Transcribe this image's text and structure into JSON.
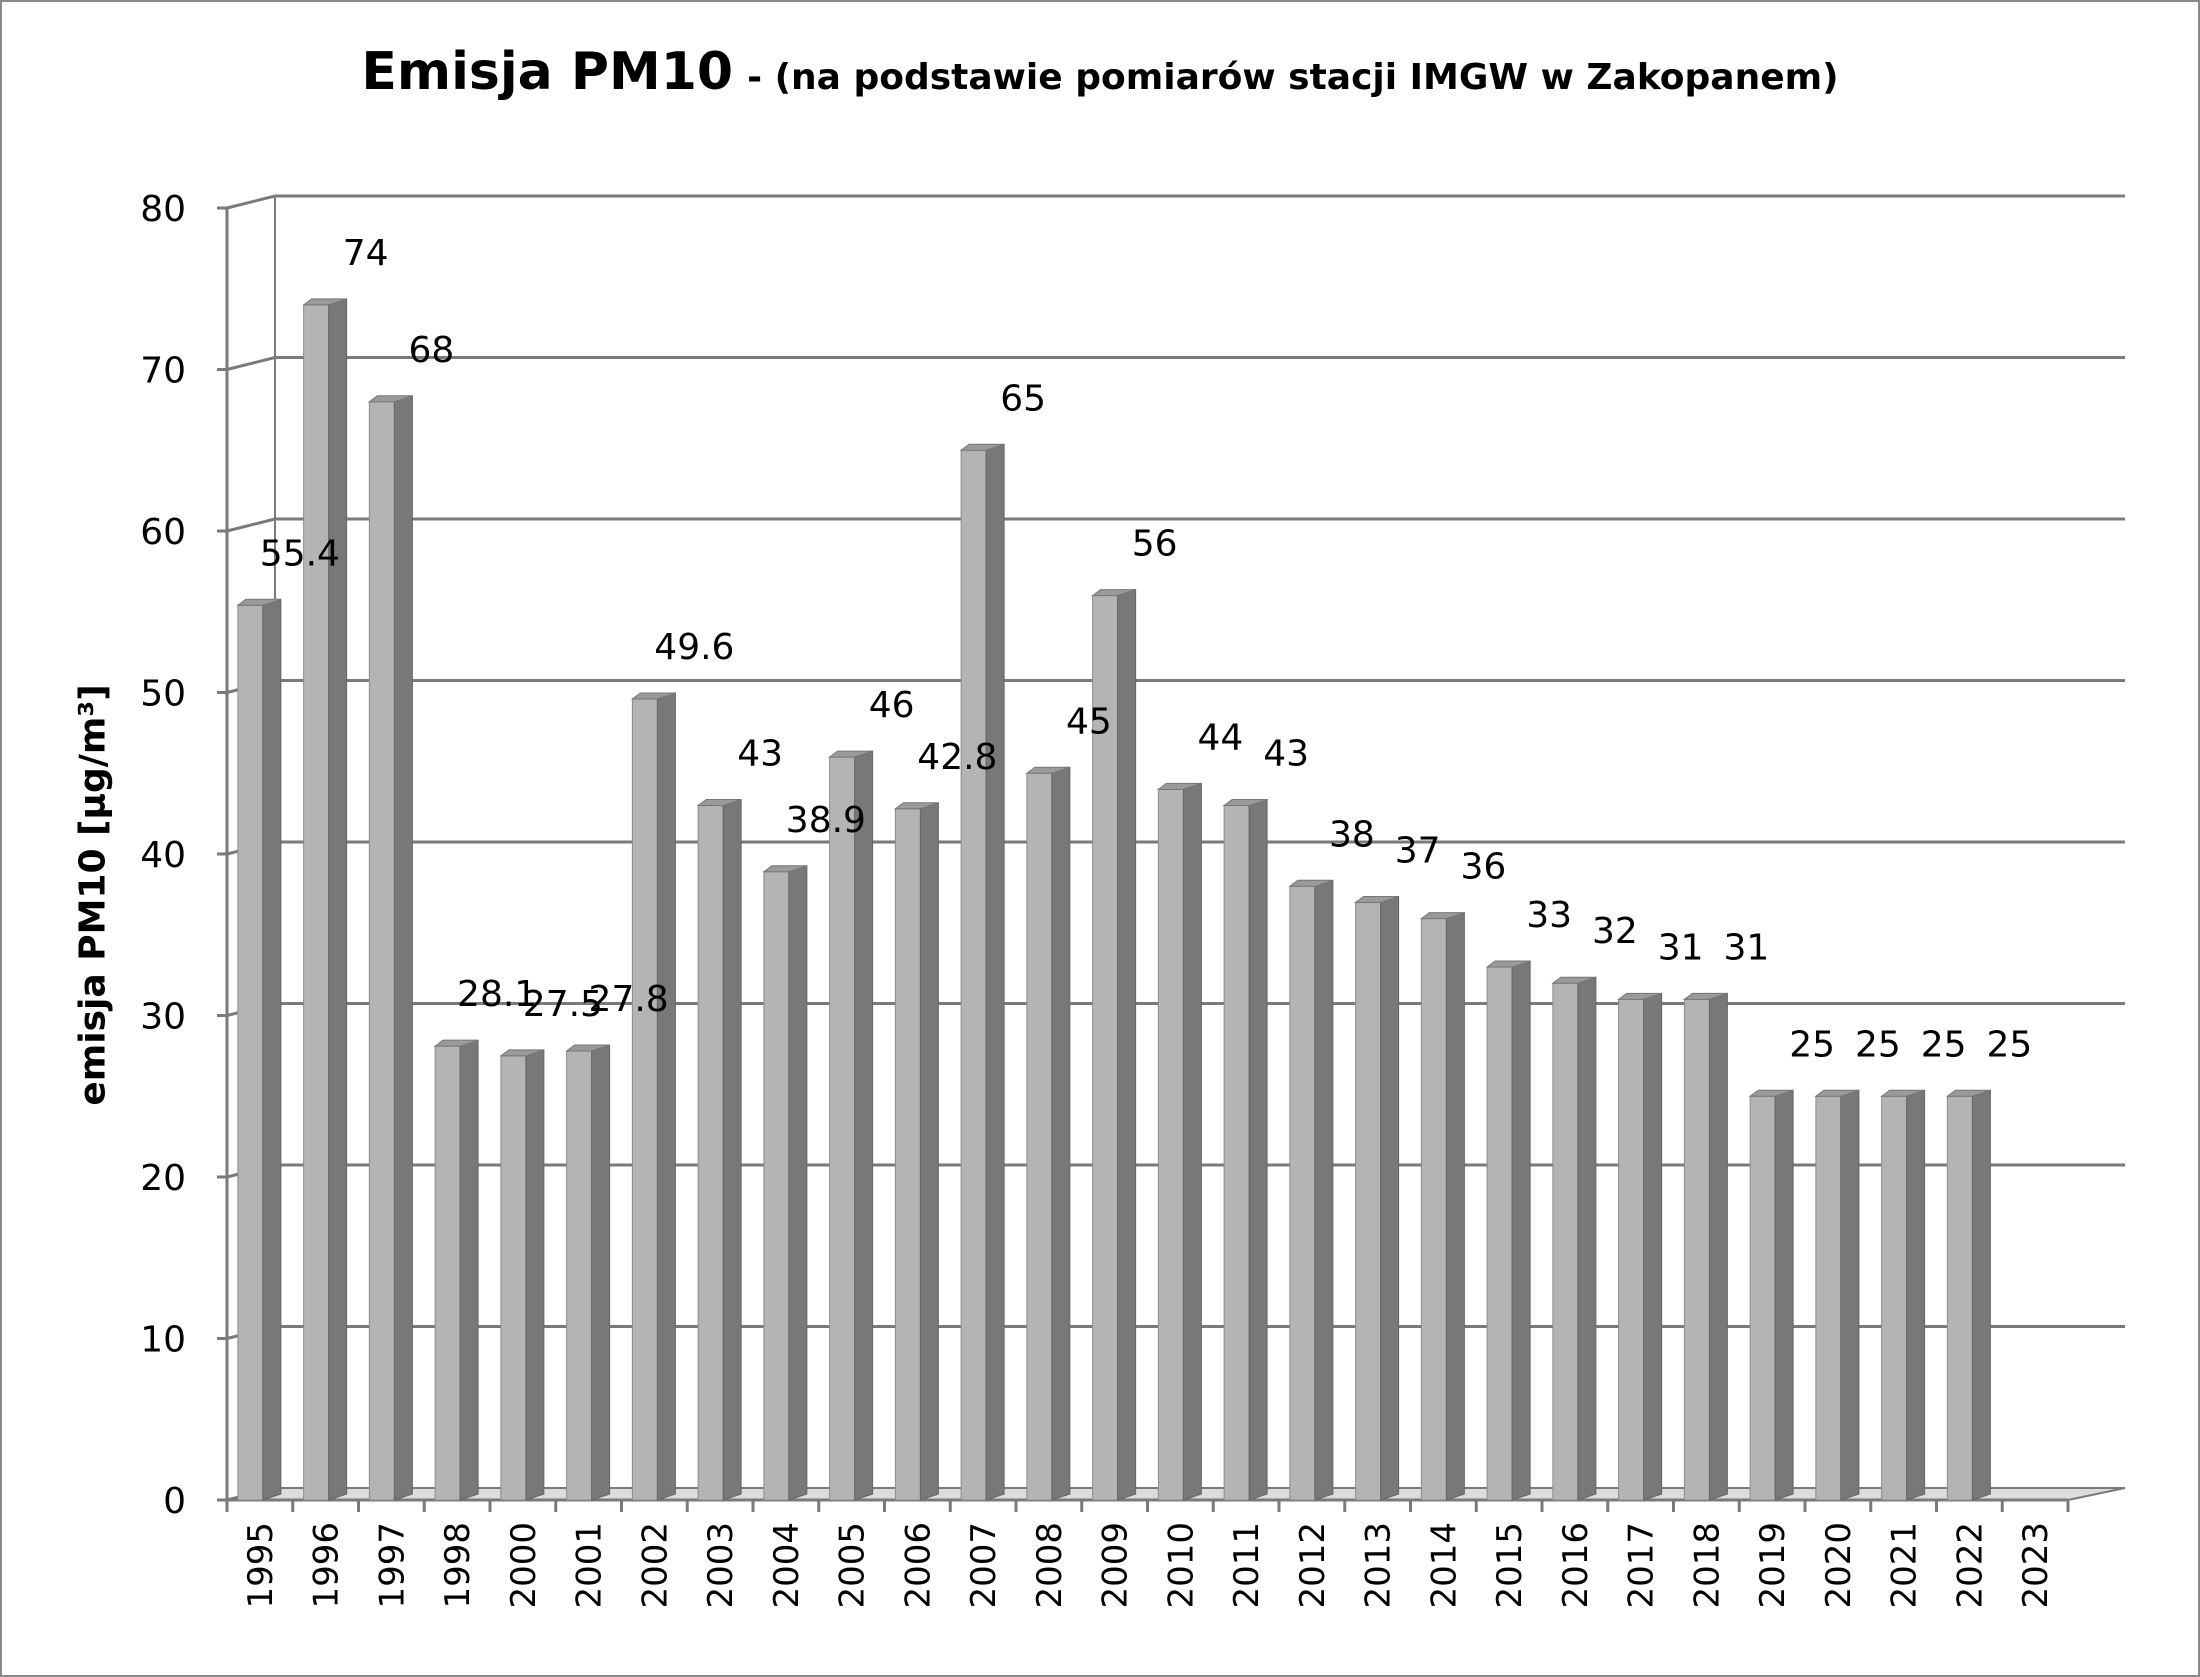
{
  "chart_data": {
    "type": "bar",
    "title": "Emisja PM10",
    "subtitle": "- (na podstawie pomiarów stacji IMGW w Zakopanem)",
    "ylabel": "emisja PM10 [µg/m³]",
    "xlabel": "",
    "ylim": [
      0,
      80
    ],
    "yticks": [
      "0",
      "10",
      "20",
      "30",
      "40",
      "50",
      "60",
      "70",
      "80"
    ],
    "grid": true,
    "legend": "none",
    "categories": [
      "1995",
      "1996",
      "1997",
      "1998",
      "2000",
      "2001",
      "2002",
      "2003",
      "2004",
      "2005",
      "2006",
      "2007",
      "2008",
      "2009",
      "2010",
      "2011",
      "2012",
      "2013",
      "2014",
      "2015",
      "2016",
      "2017",
      "2018",
      "2019",
      "2020",
      "2021",
      "2022",
      "2023"
    ],
    "values": [
      55.4,
      74,
      68,
      28.1,
      27.5,
      27.8,
      49.6,
      43,
      38.9,
      46,
      42.8,
      65,
      45,
      56,
      44,
      43,
      38,
      37,
      36,
      33,
      32,
      31,
      31,
      25,
      25,
      25,
      25,
      null
    ],
    "data_labels": [
      "55.4",
      "74",
      "68",
      "28.1",
      "27.5",
      "27.8",
      "49.6",
      "43",
      "38.9",
      "46",
      "42.8",
      "65",
      "45",
      "56",
      "44",
      "43",
      "38",
      "37",
      "36",
      "33",
      "32",
      "31",
      "31",
      "25",
      "25",
      "25",
      "25",
      ""
    ],
    "colors": {
      "bar_front": "#b4b4b4",
      "bar_side": "#787878",
      "bar_top": "#9a9a9a",
      "grid": "#7a7a7a",
      "floor": "#dcdcdc"
    }
  }
}
